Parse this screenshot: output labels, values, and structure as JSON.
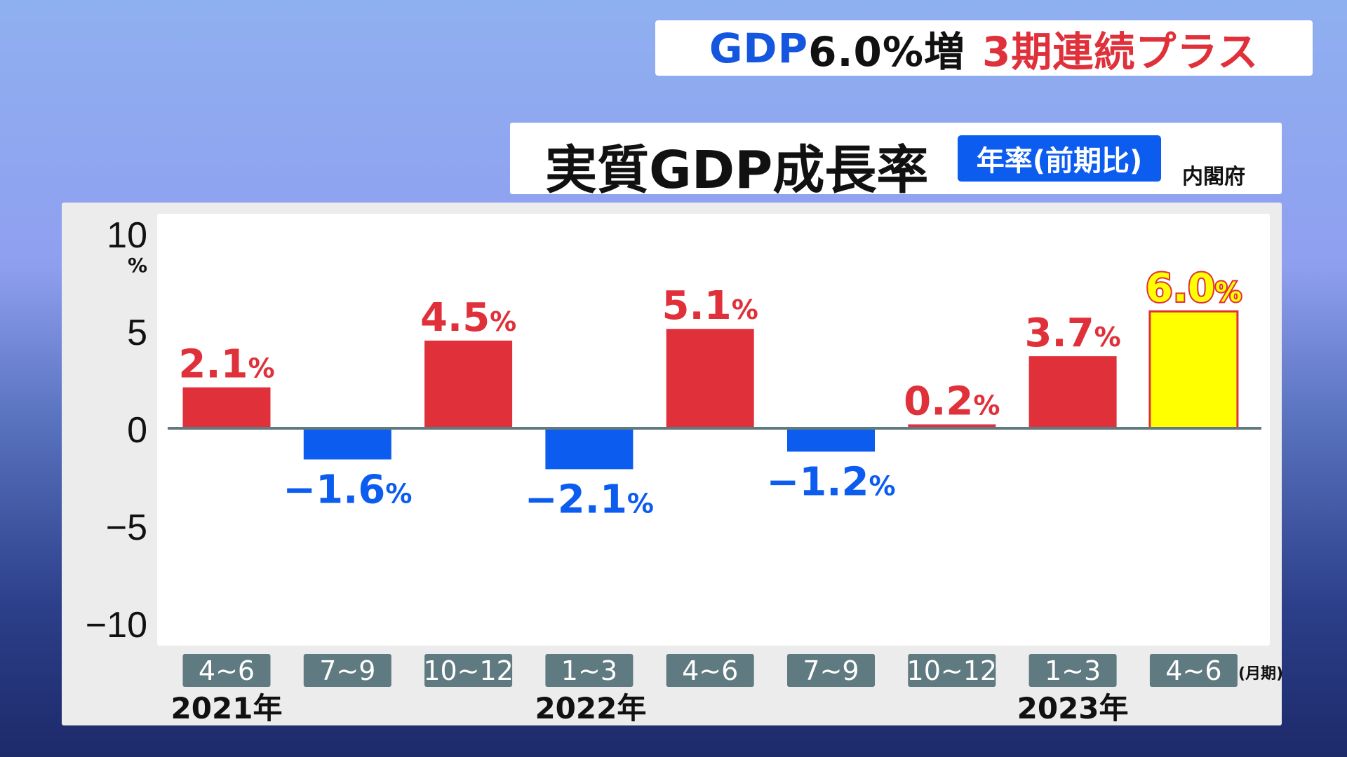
{
  "headline": {
    "part1": "GDP",
    "part2": "6.0%増",
    "part3": "3期連続プラス"
  },
  "title": "実質GDP成長率",
  "badge": "年率(前期比)",
  "source": "内閣府",
  "colors": {
    "positive": "#e0303a",
    "negative": "#0c5cf0",
    "highlight": "#ffff00",
    "category_box": "#5f7a80"
  },
  "chart_data": {
    "type": "bar",
    "categories": [
      "4~6",
      "7~9",
      "10~12",
      "1~3",
      "4~6",
      "7~9",
      "10~12",
      "1~3",
      "4~6"
    ],
    "category_unit": "(月期)",
    "years": [
      {
        "label": "2021年",
        "index": 0
      },
      {
        "label": "2022年",
        "index": 3
      },
      {
        "label": "2023年",
        "index": 7
      }
    ],
    "values": [
      2.1,
      -1.6,
      4.5,
      -2.1,
      5.1,
      -1.2,
      0.2,
      3.7,
      6.0
    ],
    "data_labels": [
      "2.1",
      "-1.6",
      "4.5",
      "-2.1",
      "5.1",
      "-1.2",
      "0.2",
      "3.7",
      "6.0"
    ],
    "label_unit": "%",
    "highlight_index": 8,
    "ylim": [
      -10,
      10
    ],
    "yticks": [
      "10",
      "5",
      "0",
      "-5",
      "-10"
    ],
    "ytick_values": [
      10,
      5,
      0,
      -5,
      -10
    ],
    "ylabel": "%",
    "grid": false
  }
}
